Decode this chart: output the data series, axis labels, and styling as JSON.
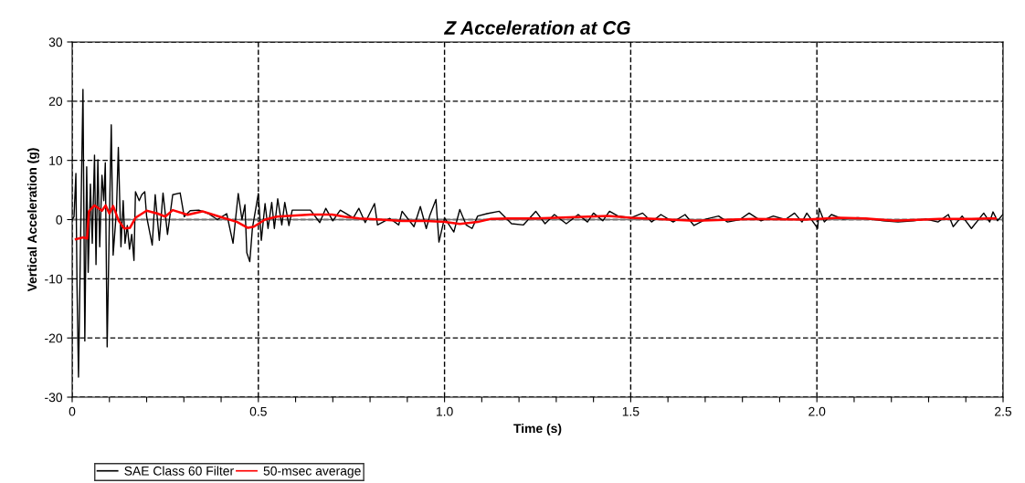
{
  "chart_data": {
    "type": "line",
    "title": "Z Acceleration at CG",
    "xlabel": "Time (s)",
    "ylabel": "Vertical Acceleration (g)",
    "xlim": [
      0,
      2.5
    ],
    "ylim": [
      -30,
      30
    ],
    "xticks": [
      0,
      {
        "value": 0.1,
        "label": null
      },
      {
        "value": 0.2,
        "label": null
      },
      {
        "value": 0.3,
        "label": null
      },
      {
        "value": 0.4,
        "label": null
      },
      0.5,
      {
        "value": 0.6,
        "label": null
      },
      {
        "value": 0.7,
        "label": null
      },
      {
        "value": 0.8,
        "label": null
      },
      {
        "value": 0.9,
        "label": null
      },
      {
        "value": 1,
        "label": "1.0"
      },
      {
        "value": 1.1,
        "label": null
      },
      {
        "value": 1.2,
        "label": null
      },
      {
        "value": 1.3,
        "label": null
      },
      {
        "value": 1.4,
        "label": null
      },
      1.5,
      {
        "value": 1.6,
        "label": null
      },
      {
        "value": 1.7,
        "label": null
      },
      {
        "value": 1.8,
        "label": null
      },
      {
        "value": 1.9,
        "label": null
      },
      {
        "value": 2,
        "label": "2.0"
      },
      {
        "value": 2.1,
        "label": null
      },
      {
        "value": 2.2,
        "label": null
      },
      {
        "value": 2.3,
        "label": null
      },
      {
        "value": 2.4,
        "label": null
      },
      2.5
    ],
    "yticks": [
      -30,
      -20,
      -10,
      0,
      10,
      20,
      30
    ],
    "grid": true,
    "legend": "bottom left",
    "line_style": "solid",
    "marker": "none",
    "series": [
      {
        "name": "SAE Class 60 Filter",
        "color": "#000000",
        "x": [
          0,
          0.005,
          0.01,
          0.013,
          0.017,
          0.022,
          0.029,
          0.034,
          0.039,
          0.043,
          0.049,
          0.054,
          0.06,
          0.064,
          0.069,
          0.074,
          0.08,
          0.085,
          0.089,
          0.094,
          0.1,
          0.105,
          0.11,
          0.119,
          0.124,
          0.131,
          0.137,
          0.142,
          0.148,
          0.154,
          0.16,
          0.166,
          0.17,
          0.18,
          0.187,
          0.195,
          0.2,
          0.215,
          0.223,
          0.234,
          0.244,
          0.256,
          0.27,
          0.29,
          0.301,
          0.317,
          0.34,
          0.366,
          0.39,
          0.415,
          0.432,
          0.446,
          0.456,
          0.464,
          0.469,
          0.477,
          0.484,
          0.5,
          0.508,
          0.518,
          0.526,
          0.536,
          0.543,
          0.552,
          0.563,
          0.571,
          0.582,
          0.591,
          0.64,
          0.665,
          0.681,
          0.7,
          0.72,
          0.755,
          0.77,
          0.787,
          0.812,
          0.82,
          0.853,
          0.877,
          0.886,
          0.918,
          0.935,
          0.951,
          0.96,
          0.977,
          0.985,
          1.0,
          1.025,
          1.041,
          1.058,
          1.074,
          1.089,
          1.114,
          1.147,
          1.18,
          1.212,
          1.245,
          1.27,
          1.295,
          1.327,
          1.359,
          1.384,
          1.4,
          1.425,
          1.443,
          1.466,
          1.5,
          1.532,
          1.556,
          1.581,
          1.614,
          1.646,
          1.67,
          1.703,
          1.736,
          1.76,
          1.793,
          1.818,
          1.85,
          1.883,
          1.915,
          1.94,
          1.96,
          1.973,
          2.002,
          2.006,
          2.02,
          2.039,
          2.07,
          2.11,
          2.145,
          2.178,
          2.218,
          2.26,
          2.292,
          2.325,
          2.353,
          2.366,
          2.39,
          2.415,
          2.448,
          2.464,
          2.473,
          2.485,
          2.5
        ],
        "values": [
          0,
          0.5,
          7.8,
          -11.2,
          -26.6,
          -5.6,
          22,
          -20.5,
          8.9,
          -8.9,
          6,
          -4,
          10.9,
          -7.6,
          10.1,
          -4.6,
          7.5,
          3.2,
          9.6,
          -21.5,
          0,
          16,
          -6,
          1.6,
          12.2,
          -4.6,
          3.2,
          -4,
          -1,
          -5,
          -2.5,
          -6.9,
          4.7,
          3.2,
          4.2,
          4.7,
          0.5,
          -4.3,
          4.2,
          -3.5,
          4.5,
          -2.5,
          4.2,
          4.5,
          0.5,
          1.5,
          1.6,
          1,
          0,
          1,
          -4,
          4.4,
          0,
          2.5,
          -5.6,
          -7.1,
          -1.5,
          4.4,
          -3.5,
          2.7,
          -1.5,
          2.9,
          -1.5,
          3.5,
          -0.9,
          2.9,
          -1,
          1.6,
          1.6,
          -0.5,
          1.9,
          -0.2,
          1.6,
          0.3,
          1.9,
          -0.5,
          2.7,
          -0.9,
          0.2,
          -0.9,
          1.4,
          -1.2,
          2.2,
          -1.5,
          0.6,
          3.4,
          -3.8,
          0.3,
          -2.1,
          1.7,
          -0.9,
          -1.5,
          0.6,
          1,
          1.4,
          -0.7,
          -0.9,
          1.4,
          -0.7,
          0.85,
          -0.7,
          0.85,
          -0.4,
          1.1,
          -0.2,
          1.4,
          0.6,
          0.3,
          1.1,
          -0.4,
          0.85,
          -0.4,
          0.85,
          -1,
          0.1,
          0.6,
          -0.4,
          0,
          1.1,
          -0.2,
          0.6,
          0,
          1.1,
          -0.4,
          1.1,
          -1.5,
          1.9,
          -0.4,
          0.85,
          0.1,
          0.3,
          0.1,
          -0.2,
          -0.4,
          -0.2,
          0.1,
          -0.4,
          0.85,
          -1.2,
          0.6,
          -1.5,
          1.1,
          -0.4,
          1.3,
          -0.2,
          0.9
        ]
      },
      {
        "name": "50-msec average",
        "color": "#ff0000",
        "x": [
          0.01,
          0.03,
          0.04,
          0.045,
          0.06,
          0.08,
          0.09,
          0.1,
          0.11,
          0.125,
          0.14,
          0.155,
          0.17,
          0.2,
          0.23,
          0.25,
          0.27,
          0.31,
          0.35,
          0.395,
          0.443,
          0.472,
          0.488,
          0.518,
          0.55,
          0.6,
          0.64,
          0.698,
          0.73,
          0.771,
          0.829,
          0.886,
          0.951,
          1.0,
          1.041,
          1.089,
          1.123,
          1.172,
          1.245,
          1.3,
          1.44,
          1.5,
          1.67,
          1.83,
          1.97,
          2.06,
          2.13,
          2.21,
          2.33,
          2.415,
          2.46,
          2.48
        ],
        "values": [
          -3.3,
          -3,
          -3.2,
          1.4,
          2.4,
          1.5,
          2.4,
          1,
          2.3,
          -0.2,
          -1.5,
          -1.4,
          0.3,
          1.5,
          1,
          0.5,
          1.6,
          0.8,
          1.4,
          0.5,
          -0.4,
          -1.4,
          -1.2,
          0,
          0.5,
          0.7,
          0.85,
          0.85,
          0.5,
          0.2,
          0,
          -0.25,
          -0.25,
          -0.4,
          -0.75,
          -0.4,
          0.1,
          0.2,
          0.2,
          0.3,
          0.6,
          0.3,
          -0.2,
          0.1,
          0,
          0.3,
          0.2,
          -0.2,
          0.1,
          0.1,
          0.2,
          0.2
        ]
      }
    ]
  }
}
